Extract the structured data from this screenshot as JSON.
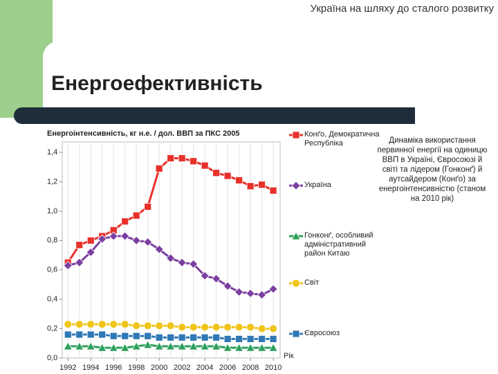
{
  "header": "Україна на шляху до сталого розвитку",
  "title": "Енергоефективність",
  "description": "Динаміка використання первинної енергії на одиницю ВВП в Україні, Євросоюзі й світі та лідером (Гонконґ) й аутсайдером (Конґо) за енергоінтенсивністю (станом на 2010 рік)",
  "chart_data": {
    "type": "line",
    "y_label": "Енергоінтенсивність, кг н.е. / дол. ВВП за ПКС 2005",
    "x_label": "Рік",
    "x": [
      1992,
      1993,
      1994,
      1995,
      1996,
      1997,
      1998,
      1999,
      2000,
      2001,
      2002,
      2003,
      2004,
      2005,
      2006,
      2007,
      2008,
      2009,
      2010
    ],
    "xlim": [
      1991.5,
      2010.6
    ],
    "xticks": [
      1992,
      1994,
      1996,
      1998,
      2000,
      2002,
      2004,
      2006,
      2008,
      2010
    ],
    "ylim": [
      0,
      1.4
    ],
    "yticks": [
      {
        "value": 0,
        "label": "0,0"
      },
      {
        "value": 0.2,
        "label": "0,2"
      },
      {
        "value": 0.4,
        "label": "0,4"
      },
      {
        "value": 0.6,
        "label": "0,6"
      },
      {
        "value": 0.8,
        "label": "0,8"
      },
      {
        "value": 1.0,
        "label": "1,0"
      },
      {
        "value": 1.2,
        "label": "1,2"
      },
      {
        "value": 1.4,
        "label": "1,4"
      }
    ],
    "series": [
      {
        "name": "Конґо, Демократична Республіка",
        "color": "#e8302a",
        "marker": "square",
        "values": [
          0.65,
          0.77,
          0.8,
          0.83,
          0.87,
          0.93,
          0.97,
          1.03,
          1.29,
          1.36,
          1.36,
          1.34,
          1.31,
          1.26,
          1.24,
          1.21,
          1.17,
          1.18,
          1.14
        ]
      },
      {
        "name": "Україна",
        "color": "#7b3fa0",
        "marker": "diamond",
        "values": [
          0.63,
          0.65,
          0.72,
          0.81,
          0.83,
          0.83,
          0.8,
          0.79,
          0.74,
          0.68,
          0.65,
          0.64,
          0.56,
          0.54,
          0.49,
          0.45,
          0.44,
          0.43,
          0.47
        ]
      },
      {
        "name": "Гонконґ, особливий адміністративний район Китаю",
        "color": "#2ca05a",
        "marker": "triangle",
        "values": [
          0.08,
          0.08,
          0.08,
          0.07,
          0.07,
          0.07,
          0.08,
          0.09,
          0.08,
          0.08,
          0.08,
          0.08,
          0.08,
          0.08,
          0.07,
          0.07,
          0.07,
          0.07,
          0.07
        ]
      },
      {
        "name": "Світ",
        "color": "#f0c419",
        "marker": "circle",
        "values": [
          0.23,
          0.23,
          0.23,
          0.23,
          0.23,
          0.23,
          0.22,
          0.22,
          0.22,
          0.22,
          0.21,
          0.21,
          0.21,
          0.21,
          0.21,
          0.21,
          0.21,
          0.2,
          0.2
        ]
      },
      {
        "name": "Євросоюз",
        "color": "#2f78b5",
        "marker": "square",
        "values": [
          0.16,
          0.16,
          0.16,
          0.16,
          0.15,
          0.15,
          0.15,
          0.15,
          0.14,
          0.14,
          0.14,
          0.14,
          0.14,
          0.14,
          0.13,
          0.13,
          0.13,
          0.13,
          0.13
        ]
      }
    ]
  }
}
